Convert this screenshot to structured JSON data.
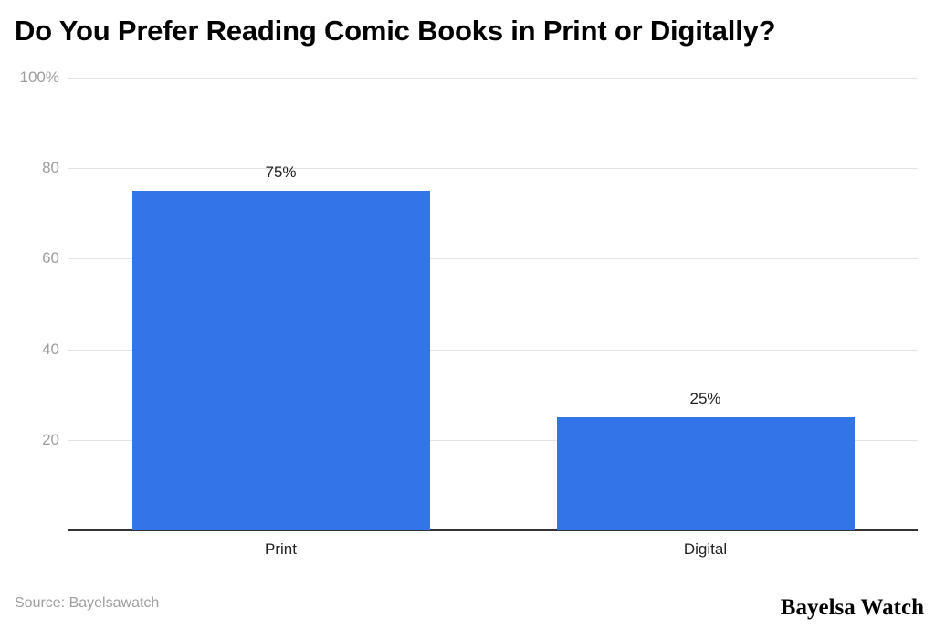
{
  "chart_data": {
    "type": "bar",
    "title": "Do You Prefer Reading Comic Books in Print or Digitally?",
    "categories": [
      "Print",
      "Digital"
    ],
    "values": [
      75,
      25
    ],
    "value_labels": [
      "75%",
      "25%"
    ],
    "xlabel": "",
    "ylabel": "",
    "ylim": [
      0,
      100
    ],
    "yticks": [
      {
        "value": 100,
        "label": "100%"
      },
      {
        "value": 80,
        "label": "80"
      },
      {
        "value": 60,
        "label": "60"
      },
      {
        "value": 40,
        "label": "40"
      },
      {
        "value": 20,
        "label": "20"
      }
    ],
    "grid": true,
    "legend": null,
    "bar_color": "#3374e8"
  },
  "footer": {
    "source": "Source: Bayelsawatch",
    "brand": "Bayelsa Watch"
  }
}
